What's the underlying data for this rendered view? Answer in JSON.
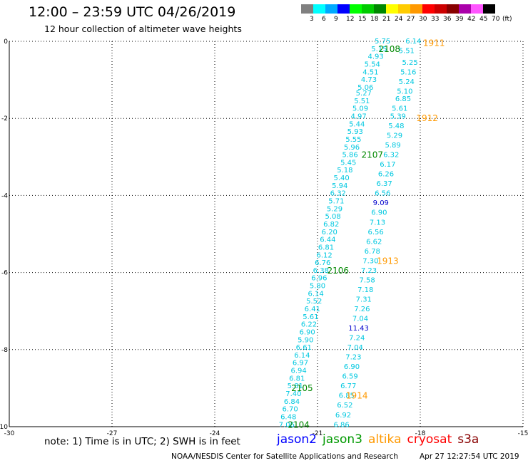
{
  "title": "12:00 – 23:59 UTC 04/26/2019",
  "subtitle": "12 hour collection of altimeter wave heights",
  "color_scale": {
    "unit": "(ft)",
    "bins": [
      {
        "label": "3",
        "color": "#808080"
      },
      {
        "label": "6",
        "color": "#00ffff"
      },
      {
        "label": "9",
        "color": "#00aaff"
      },
      {
        "label": "12",
        "color": "#0000ff"
      },
      {
        "label": "15",
        "color": "#00ff00"
      },
      {
        "label": "18",
        "color": "#00cc00"
      },
      {
        "label": "21",
        "color": "#008800"
      },
      {
        "label": "24",
        "color": "#ffff00"
      },
      {
        "label": "27",
        "color": "#ffcc00"
      },
      {
        "label": "30",
        "color": "#ff9900"
      },
      {
        "label": "33",
        "color": "#ff0000"
      },
      {
        "label": "36",
        "color": "#cc0000"
      },
      {
        "label": "39",
        "color": "#880000"
      },
      {
        "label": "42",
        "color": "#aa00aa"
      },
      {
        "label": "45",
        "color": "#ff55ff"
      },
      {
        "label": "70",
        "color": "#000000"
      }
    ]
  },
  "note": "note: 1) Time is in UTC; 2) SWH is in feet",
  "satellites": [
    {
      "name": "jason2",
      "color": "#0000ff"
    },
    {
      "name": "jason3",
      "color": "#009900"
    },
    {
      "name": "altika",
      "color": "#ff9900"
    },
    {
      "name": "cryosat",
      "color": "#ff0000"
    },
    {
      "name": "s3a",
      "color": "#880000"
    }
  ],
  "credit": {
    "source": "NOAA/NESDIS Center for Satellite Applications and Research",
    "timestamp": "Apr 27 12:27:54 UTC 2019"
  },
  "chart_data": {
    "type": "scatter",
    "xlim": [
      -30,
      -15
    ],
    "ylim": [
      -10,
      0
    ],
    "x_ticks": [
      -30,
      -27,
      -24,
      -21,
      -18,
      -15
    ],
    "y_ticks": [
      0,
      -2,
      -4,
      -6,
      -8,
      -10
    ],
    "grid": "dotted",
    "colors": {
      "cyan": "#00c8e0",
      "blue": "#0000cc",
      "green": "#008800",
      "orange": "#ff9900"
    },
    "points": [
      {
        "x": -19.1,
        "y": 0.0,
        "label": "5.75",
        "c": "cyan"
      },
      {
        "x": -18.2,
        "y": 0.0,
        "label": "6.14",
        "c": "cyan"
      },
      {
        "x": -19.2,
        "y": -0.2,
        "label": "5.15",
        "c": "cyan"
      },
      {
        "x": -18.4,
        "y": -0.25,
        "label": "5.51",
        "c": "cyan"
      },
      {
        "x": -19.3,
        "y": -0.4,
        "label": "4.93",
        "c": "cyan"
      },
      {
        "x": -18.3,
        "y": -0.55,
        "label": "5.25",
        "c": "cyan"
      },
      {
        "x": -19.4,
        "y": -0.6,
        "label": "5.54",
        "c": "cyan"
      },
      {
        "x": -19.45,
        "y": -0.8,
        "label": "4.51",
        "c": "cyan"
      },
      {
        "x": -18.35,
        "y": -0.8,
        "label": "5.16",
        "c": "cyan"
      },
      {
        "x": -19.5,
        "y": -1.0,
        "label": "4.73",
        "c": "cyan"
      },
      {
        "x": -18.4,
        "y": -1.05,
        "label": "5.24",
        "c": "cyan"
      },
      {
        "x": -19.6,
        "y": -1.2,
        "label": "5.06",
        "c": "cyan"
      },
      {
        "x": -18.45,
        "y": -1.3,
        "label": "5.10",
        "c": "cyan"
      },
      {
        "x": -19.65,
        "y": -1.35,
        "label": "5.27",
        "c": "cyan"
      },
      {
        "x": -18.5,
        "y": -1.5,
        "label": "6.85",
        "c": "cyan"
      },
      {
        "x": -19.7,
        "y": -1.55,
        "label": "5.51",
        "c": "cyan"
      },
      {
        "x": -19.75,
        "y": -1.75,
        "label": "5.09",
        "c": "cyan"
      },
      {
        "x": -18.6,
        "y": -1.75,
        "label": "5.61",
        "c": "cyan"
      },
      {
        "x": -19.8,
        "y": -1.95,
        "label": "4.97",
        "c": "cyan"
      },
      {
        "x": -18.65,
        "y": -1.95,
        "label": "5.39",
        "c": "cyan"
      },
      {
        "x": -19.85,
        "y": -2.15,
        "label": "5.44",
        "c": "cyan"
      },
      {
        "x": -18.7,
        "y": -2.2,
        "label": "5.48",
        "c": "cyan"
      },
      {
        "x": -19.9,
        "y": -2.35,
        "label": "5.93",
        "c": "cyan"
      },
      {
        "x": -18.75,
        "y": -2.45,
        "label": "5.29",
        "c": "cyan"
      },
      {
        "x": -19.95,
        "y": -2.55,
        "label": "5.55",
        "c": "cyan"
      },
      {
        "x": -18.8,
        "y": -2.7,
        "label": "5.89",
        "c": "cyan"
      },
      {
        "x": -20.0,
        "y": -2.75,
        "label": "5.96",
        "c": "cyan"
      },
      {
        "x": -18.85,
        "y": -2.95,
        "label": "6.32",
        "c": "cyan"
      },
      {
        "x": -20.05,
        "y": -2.95,
        "label": "5.86",
        "c": "cyan"
      },
      {
        "x": -20.1,
        "y": -3.15,
        "label": "5.45",
        "c": "cyan"
      },
      {
        "x": -18.95,
        "y": -3.2,
        "label": "6.17",
        "c": "cyan"
      },
      {
        "x": -20.2,
        "y": -3.35,
        "label": "5.18",
        "c": "cyan"
      },
      {
        "x": -19.0,
        "y": -3.45,
        "label": "6.26",
        "c": "cyan"
      },
      {
        "x": -20.3,
        "y": -3.55,
        "label": "5.40",
        "c": "cyan"
      },
      {
        "x": -19.05,
        "y": -3.7,
        "label": "6.37",
        "c": "cyan"
      },
      {
        "x": -20.35,
        "y": -3.75,
        "label": "5.94",
        "c": "cyan"
      },
      {
        "x": -20.4,
        "y": -3.95,
        "label": "6.32",
        "c": "cyan"
      },
      {
        "x": -19.1,
        "y": -3.95,
        "label": "6.56",
        "c": "cyan"
      },
      {
        "x": -20.45,
        "y": -4.15,
        "label": "5.71",
        "c": "cyan"
      },
      {
        "x": -19.15,
        "y": -4.2,
        "label": "9.09",
        "c": "blue"
      },
      {
        "x": -20.5,
        "y": -4.35,
        "label": "5.29",
        "c": "cyan"
      },
      {
        "x": -19.2,
        "y": -4.45,
        "label": "6.90",
        "c": "cyan"
      },
      {
        "x": -20.55,
        "y": -4.55,
        "label": "5.08",
        "c": "cyan"
      },
      {
        "x": -19.25,
        "y": -4.7,
        "label": "7.13",
        "c": "cyan"
      },
      {
        "x": -20.6,
        "y": -4.75,
        "label": "6.82",
        "c": "cyan"
      },
      {
        "x": -20.65,
        "y": -4.95,
        "label": "6.20",
        "c": "cyan"
      },
      {
        "x": -19.3,
        "y": -4.95,
        "label": "6.56",
        "c": "cyan"
      },
      {
        "x": -20.7,
        "y": -5.15,
        "label": "6.44",
        "c": "cyan"
      },
      {
        "x": -19.35,
        "y": -5.2,
        "label": "6.62",
        "c": "cyan"
      },
      {
        "x": -20.75,
        "y": -5.35,
        "label": "6.81",
        "c": "cyan"
      },
      {
        "x": -19.4,
        "y": -5.45,
        "label": "6.78",
        "c": "cyan"
      },
      {
        "x": -20.8,
        "y": -5.55,
        "label": "6.12",
        "c": "cyan"
      },
      {
        "x": -19.45,
        "y": -5.7,
        "label": "7.30",
        "c": "cyan"
      },
      {
        "x": -20.85,
        "y": -5.75,
        "label": "6.76",
        "c": "cyan"
      },
      {
        "x": -19.5,
        "y": -5.95,
        "label": "7.23",
        "c": "cyan"
      },
      {
        "x": -20.9,
        "y": -5.95,
        "label": "6.38",
        "c": "cyan"
      },
      {
        "x": -20.95,
        "y": -6.15,
        "label": "6.96",
        "c": "cyan"
      },
      {
        "x": -19.55,
        "y": -6.2,
        "label": "7.58",
        "c": "cyan"
      },
      {
        "x": -21.0,
        "y": -6.35,
        "label": "5.80",
        "c": "cyan"
      },
      {
        "x": -19.6,
        "y": -6.45,
        "label": "7.18",
        "c": "cyan"
      },
      {
        "x": -21.05,
        "y": -6.55,
        "label": "6.14",
        "c": "cyan"
      },
      {
        "x": -19.65,
        "y": -6.7,
        "label": "7.31",
        "c": "cyan"
      },
      {
        "x": -21.1,
        "y": -6.75,
        "label": "5.52",
        "c": "cyan"
      },
      {
        "x": -21.15,
        "y": -6.95,
        "label": "6.41",
        "c": "cyan"
      },
      {
        "x": -19.7,
        "y": -6.95,
        "label": "7.26",
        "c": "cyan"
      },
      {
        "x": -21.2,
        "y": -7.15,
        "label": "5.61",
        "c": "cyan"
      },
      {
        "x": -19.75,
        "y": -7.2,
        "label": "7.04",
        "c": "cyan"
      },
      {
        "x": -21.25,
        "y": -7.35,
        "label": "6.22",
        "c": "cyan"
      },
      {
        "x": -19.8,
        "y": -7.45,
        "label": "11.43",
        "c": "blue"
      },
      {
        "x": -21.3,
        "y": -7.55,
        "label": "6.90",
        "c": "cyan"
      },
      {
        "x": -19.85,
        "y": -7.7,
        "label": "7.24",
        "c": "cyan"
      },
      {
        "x": -21.35,
        "y": -7.75,
        "label": "5.90",
        "c": "cyan"
      },
      {
        "x": -21.4,
        "y": -7.95,
        "label": "6.61",
        "c": "cyan"
      },
      {
        "x": -19.9,
        "y": -7.95,
        "label": "7.04",
        "c": "cyan"
      },
      {
        "x": -21.45,
        "y": -8.15,
        "label": "6.14",
        "c": "cyan"
      },
      {
        "x": -19.95,
        "y": -8.2,
        "label": "7.23",
        "c": "cyan"
      },
      {
        "x": -21.5,
        "y": -8.35,
        "label": "6.97",
        "c": "cyan"
      },
      {
        "x": -20.0,
        "y": -8.45,
        "label": "6.90",
        "c": "cyan"
      },
      {
        "x": -21.55,
        "y": -8.55,
        "label": "6.94",
        "c": "cyan"
      },
      {
        "x": -20.05,
        "y": -8.7,
        "label": "6.59",
        "c": "cyan"
      },
      {
        "x": -21.6,
        "y": -8.75,
        "label": "6.81",
        "c": "cyan"
      },
      {
        "x": -21.65,
        "y": -8.95,
        "label": "5.81",
        "c": "cyan"
      },
      {
        "x": -20.1,
        "y": -8.95,
        "label": "6.77",
        "c": "cyan"
      },
      {
        "x": -21.7,
        "y": -9.15,
        "label": "7.40",
        "c": "cyan"
      },
      {
        "x": -20.15,
        "y": -9.2,
        "label": "6.85",
        "c": "cyan"
      },
      {
        "x": -21.75,
        "y": -9.35,
        "label": "6.84",
        "c": "cyan"
      },
      {
        "x": -20.2,
        "y": -9.45,
        "label": "6.52",
        "c": "cyan"
      },
      {
        "x": -21.8,
        "y": -9.55,
        "label": "6.70",
        "c": "cyan"
      },
      {
        "x": -20.25,
        "y": -9.7,
        "label": "6.92",
        "c": "cyan"
      },
      {
        "x": -21.85,
        "y": -9.75,
        "label": "6.48",
        "c": "cyan"
      },
      {
        "x": -20.3,
        "y": -9.95,
        "label": "6.86",
        "c": "cyan"
      },
      {
        "x": -21.9,
        "y": -9.95,
        "label": "7.06",
        "c": "cyan"
      }
    ],
    "time_labels": [
      {
        "x": -18.9,
        "y": -0.2,
        "label": "2108",
        "c": "green"
      },
      {
        "x": -17.6,
        "y": -0.05,
        "label": "1911",
        "c": "orange"
      },
      {
        "x": -17.8,
        "y": -2.0,
        "label": "1912",
        "c": "orange"
      },
      {
        "x": -19.4,
        "y": -2.95,
        "label": "2107",
        "c": "green"
      },
      {
        "x": -18.95,
        "y": -5.7,
        "label": "1913",
        "c": "orange"
      },
      {
        "x": -20.4,
        "y": -5.95,
        "label": "2106",
        "c": "green"
      },
      {
        "x": -21.45,
        "y": -9.0,
        "label": "2105",
        "c": "green"
      },
      {
        "x": -19.85,
        "y": -9.2,
        "label": "1914",
        "c": "orange"
      },
      {
        "x": -21.55,
        "y": -9.95,
        "label": "2104",
        "c": "green"
      }
    ]
  }
}
